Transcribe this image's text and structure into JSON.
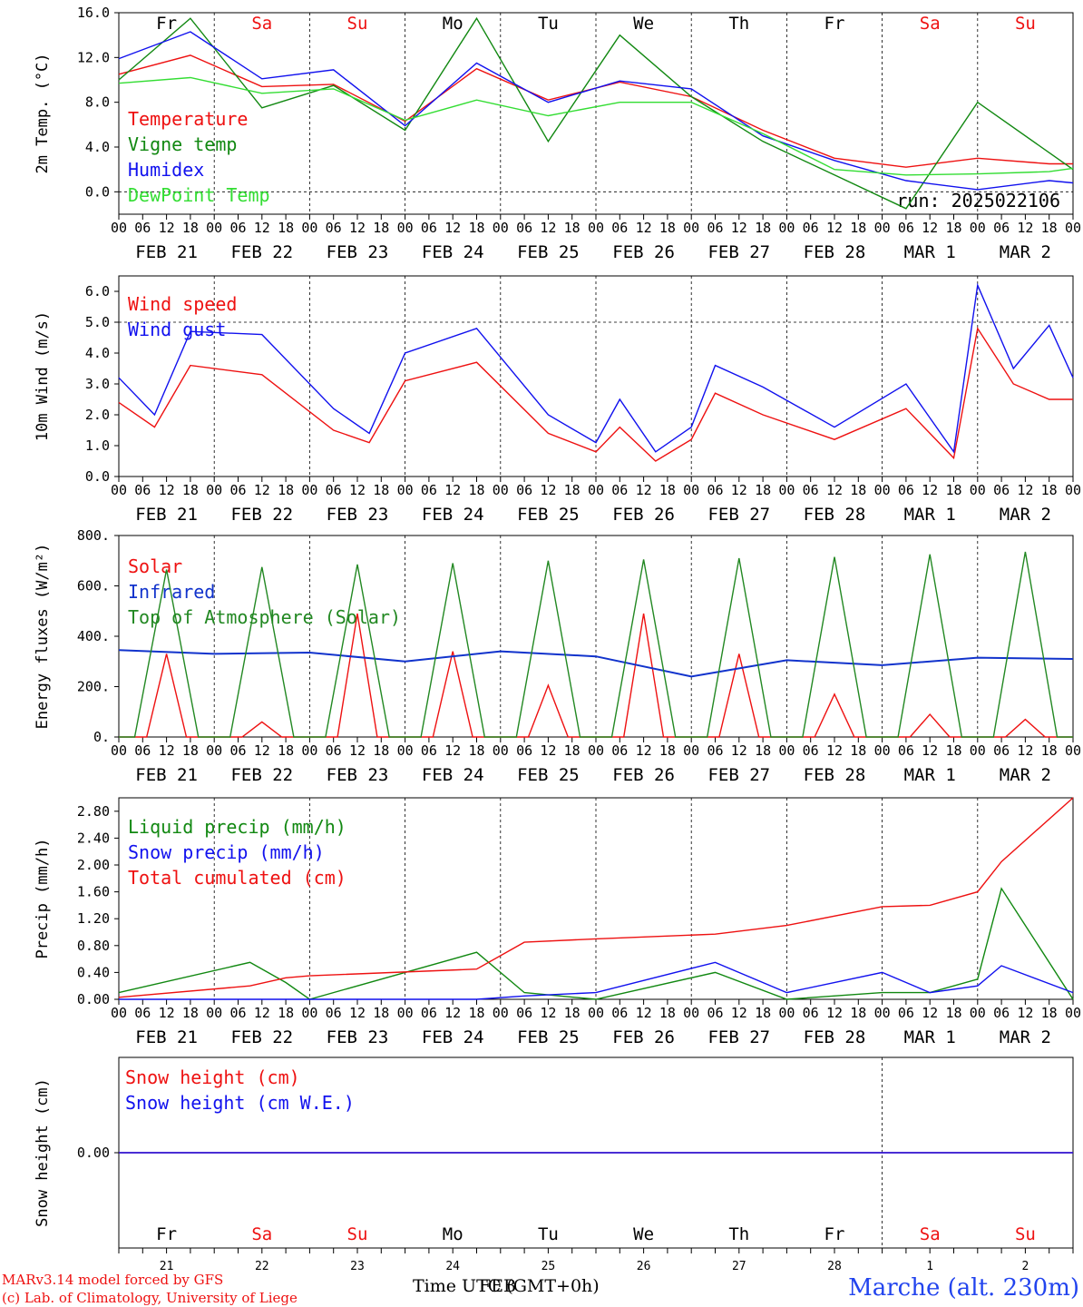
{
  "colors": {
    "red": "#ee1111",
    "darkgreen": "#118811",
    "blue": "#1111ee",
    "lightgreen": "#33dd33",
    "topo_green": "#228822",
    "infrared_blue": "#1133cc"
  },
  "x_axis": {
    "hour_ticks": [
      "00",
      "06",
      "12",
      "18"
    ],
    "final_tick": "00",
    "dates": [
      "FEB 21",
      "FEB 22",
      "FEB 23",
      "FEB 24",
      "FEB 25",
      "FEB 26",
      "FEB 27",
      "FEB 28",
      "MAR  1",
      "MAR  2"
    ],
    "weekdays": [
      {
        "label": "Fr",
        "color": "black"
      },
      {
        "label": "Sa",
        "color": "red"
      },
      {
        "label": "Su",
        "color": "red"
      },
      {
        "label": "Mo",
        "color": "black"
      },
      {
        "label": "Tu",
        "color": "black"
      },
      {
        "label": "We",
        "color": "black"
      },
      {
        "label": "Th",
        "color": "black"
      },
      {
        "label": "Fr",
        "color": "black"
      },
      {
        "label": "Sa",
        "color": "red"
      },
      {
        "label": "Su",
        "color": "red"
      }
    ],
    "day_numbers": [
      "21",
      "22",
      "23",
      "24",
      "25",
      "26",
      "27",
      "28",
      "1",
      "2"
    ]
  },
  "footer": {
    "model": "MARv3.14 model forced by GFS",
    "copyright": "(c) Lab. of Climatology, University of Liege",
    "time_label": "Time UTC (GMT+0h)",
    "time_overlay": "FEB",
    "location": "Marche (alt. 230m)"
  },
  "chart_data": [
    {
      "type": "line",
      "title": "",
      "ylabel": "2m Temp. (°C)",
      "ylim": [
        -2,
        16
      ],
      "yticks": [
        "16.0",
        "12.0",
        "8.0",
        "4.0",
        "0.0"
      ],
      "ytick_values": [
        16,
        12,
        8,
        4,
        0
      ],
      "ref_line": 0,
      "run_label": "run: 2025022106",
      "x_hours": [
        0,
        18,
        36,
        54,
        72,
        90,
        108,
        126,
        144,
        162,
        180,
        198,
        216,
        234,
        240
      ],
      "series": [
        {
          "name": "Temperature",
          "color_key": "red",
          "values": [
            10.5,
            12.2,
            9.4,
            9.6,
            6.3,
            11.0,
            8.2,
            9.8,
            8.5,
            5.5,
            3.0,
            2.2,
            3.0,
            2.5,
            2.5
          ]
        },
        {
          "name": "Vigne temp",
          "color_key": "darkgreen",
          "values": [
            10.0,
            15.5,
            7.5,
            9.5,
            5.5,
            15.5,
            4.5,
            14.0,
            8.5,
            4.5,
            1.5,
            -1.5,
            8.0,
            3.5,
            2.0
          ]
        },
        {
          "name": "Humidex",
          "color_key": "blue",
          "values": [
            11.9,
            14.3,
            10.1,
            10.9,
            5.9,
            11.5,
            8.0,
            9.9,
            9.2,
            5.0,
            2.8,
            1.0,
            0.2,
            1.0,
            0.8
          ]
        },
        {
          "name": "DewPoint Temp",
          "color_key": "lightgreen",
          "values": [
            9.7,
            10.2,
            8.8,
            9.2,
            6.4,
            8.2,
            6.8,
            8.0,
            8.0,
            5.2,
            2.0,
            1.5,
            1.6,
            1.8,
            2.1
          ]
        }
      ]
    },
    {
      "type": "line",
      "title": "",
      "ylabel": "10m Wind (m/s)",
      "ylim": [
        0,
        6.5
      ],
      "yticks": [
        "6.0",
        "5.0",
        "4.0",
        "3.0",
        "2.0",
        "1.0",
        "0.0"
      ],
      "ytick_values": [
        6,
        5,
        4,
        3,
        2,
        1,
        0
      ],
      "ref_line": 5,
      "x_hours": [
        0,
        9,
        18,
        36,
        54,
        63,
        72,
        90,
        108,
        120,
        126,
        135,
        144,
        150,
        162,
        180,
        198,
        210,
        216,
        225,
        234,
        240
      ],
      "series": [
        {
          "name": "Wind speed",
          "color_key": "red",
          "values": [
            2.4,
            1.6,
            3.6,
            3.3,
            1.5,
            1.1,
            3.1,
            3.7,
            1.4,
            0.8,
            1.6,
            0.5,
            1.2,
            2.7,
            2.0,
            1.2,
            2.2,
            0.6,
            4.8,
            3.0,
            2.5,
            2.5
          ]
        },
        {
          "name": "Wind gust",
          "color_key": "blue",
          "values": [
            3.2,
            2.0,
            4.7,
            4.6,
            2.2,
            1.4,
            4.0,
            4.8,
            2.0,
            1.1,
            2.5,
            0.8,
            1.6,
            3.6,
            2.9,
            1.6,
            3.0,
            0.8,
            6.2,
            3.5,
            4.9,
            3.2
          ]
        }
      ]
    },
    {
      "type": "line",
      "title": "",
      "ylabel": "Energy fluxes (W/m²)",
      "ylim": [
        0,
        800
      ],
      "yticks": [
        "800.",
        "600.",
        "400.",
        "200.",
        "0."
      ],
      "ytick_values": [
        800,
        600,
        400,
        200,
        0
      ],
      "x_hours": [
        0,
        24,
        48,
        72,
        96,
        120,
        144,
        168,
        192,
        216,
        240
      ],
      "series": [
        {
          "name": "Solar",
          "color_key": "red",
          "values": [
            0,
            0,
            0,
            0,
            0,
            0,
            0,
            0,
            0,
            0,
            0
          ],
          "day_peaks": [
            330,
            60,
            490,
            340,
            205,
            490,
            330,
            170,
            90,
            70
          ]
        },
        {
          "name": "Infrared",
          "color_key": "infrared_blue",
          "values": [
            345,
            330,
            335,
            300,
            340,
            320,
            240,
            305,
            285,
            315,
            310
          ]
        },
        {
          "name": "Top of Atmosphere (Solar)",
          "color_key": "topo_green",
          "values": [
            0,
            0,
            0,
            0,
            0,
            0,
            0,
            0,
            0,
            0,
            0
          ],
          "day_peaks": [
            665,
            675,
            685,
            690,
            700,
            705,
            710,
            715,
            725,
            735
          ]
        }
      ]
    },
    {
      "type": "line",
      "title": "",
      "ylabel": "Precip (mm/h)",
      "ylim": [
        0,
        3.0
      ],
      "yticks": [
        "2.80",
        "2.40",
        "2.00",
        "1.60",
        "1.20",
        "0.80",
        "0.40",
        "0.00"
      ],
      "ytick_values": [
        2.8,
        2.4,
        2.0,
        1.6,
        1.2,
        0.8,
        0.4,
        0.0
      ],
      "x_hours": [
        0,
        33,
        42,
        48,
        90,
        102,
        120,
        150,
        168,
        192,
        204,
        216,
        222,
        240
      ],
      "series": [
        {
          "name": "Liquid precip (mm/h)",
          "color_key": "darkgreen",
          "values": [
            0.1,
            0.55,
            0.25,
            0.0,
            0.7,
            0.1,
            0.0,
            0.4,
            0.0,
            0.1,
            0.1,
            0.3,
            1.65,
            0.0
          ]
        },
        {
          "name": "Snow precip (mm/h)",
          "color_key": "blue",
          "values": [
            0.0,
            0.0,
            0.0,
            0.0,
            0.0,
            0.05,
            0.1,
            0.55,
            0.1,
            0.4,
            0.1,
            0.2,
            0.5,
            0.1
          ]
        },
        {
          "name": "Total cumulated (cm)",
          "color_key": "red",
          "values": [
            0.03,
            0.2,
            0.32,
            0.35,
            0.45,
            0.85,
            0.9,
            0.97,
            1.1,
            1.38,
            1.4,
            1.6,
            2.05,
            3.0
          ]
        }
      ]
    },
    {
      "type": "line",
      "title": "",
      "ylabel": "Snow height (cm)",
      "ylim": [
        -1,
        1
      ],
      "yticks": [
        "0.00"
      ],
      "ytick_values": [
        0
      ],
      "x_hours": [
        0,
        240
      ],
      "series": [
        {
          "name": "Snow height (cm)",
          "color_key": "red",
          "values": [
            0.0,
            0.0
          ]
        },
        {
          "name": "Snow height (cm W.E.)",
          "color_key": "blue",
          "values": [
            0.0,
            0.0
          ]
        }
      ]
    }
  ]
}
